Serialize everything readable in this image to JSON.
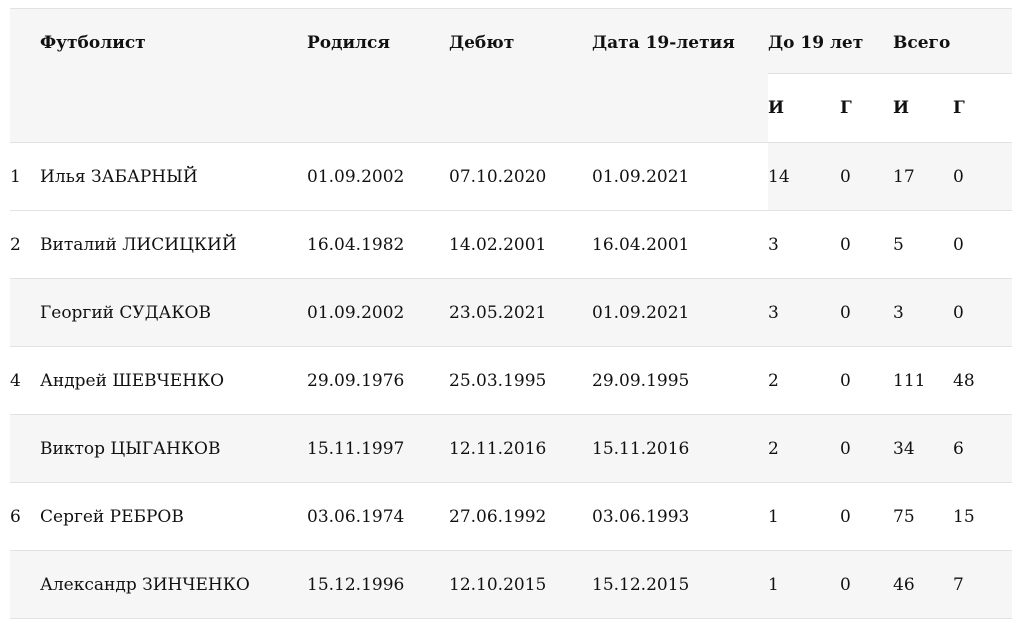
{
  "table": {
    "header": {
      "player": "Футболист",
      "born": "Родился",
      "debut": "Дебют",
      "date19": "Дата 19-летия",
      "under19": "До 19 лет",
      "total": "Всего",
      "matches_abbr": "И",
      "goals_abbr": "Г"
    },
    "rows": [
      {
        "num": "1",
        "player": "Илья ЗАБАРНЫЙ",
        "born": "01.09.2002",
        "debut": "07.10.2020",
        "date19": "01.09.2021",
        "u19_i": "14",
        "u19_g": "0",
        "tot_i": "17",
        "tot_g": "0",
        "shade": "numeric"
      },
      {
        "num": "2",
        "player": "Виталий ЛИСИЦКИЙ",
        "born": "16.04.1982",
        "debut": "14.02.2001",
        "date19": "16.04.2001",
        "u19_i": "3",
        "u19_g": "0",
        "tot_i": "5",
        "tot_g": "0",
        "shade": "none"
      },
      {
        "num": "",
        "player": "Георгий СУДАКОВ",
        "born": "01.09.2002",
        "debut": "23.05.2021",
        "date19": "01.09.2021",
        "u19_i": "3",
        "u19_g": "0",
        "tot_i": "3",
        "tot_g": "0",
        "shade": "full"
      },
      {
        "num": "4",
        "player": "Андрей ШЕВЧЕНКО",
        "born": "29.09.1976",
        "debut": "25.03.1995",
        "date19": "29.09.1995",
        "u19_i": "2",
        "u19_g": "0",
        "tot_i": "111",
        "tot_g": "48",
        "shade": "none"
      },
      {
        "num": "",
        "player": "Виктор ЦЫГАНКОВ",
        "born": "15.11.1997",
        "debut": "12.11.2016",
        "date19": "15.11.2016",
        "u19_i": "2",
        "u19_g": "0",
        "tot_i": "34",
        "tot_g": "6",
        "shade": "full"
      },
      {
        "num": "6",
        "player": "Сергей РЕБРОВ",
        "born": "03.06.1974",
        "debut": "27.06.1992",
        "date19": "03.06.1993",
        "u19_i": "1",
        "u19_g": "0",
        "tot_i": "75",
        "tot_g": "15",
        "shade": "none"
      },
      {
        "num": "",
        "player": "Александр ЗИНЧЕНКО",
        "born": "15.12.1996",
        "debut": "12.10.2015",
        "date19": "15.12.2015",
        "u19_i": "1",
        "u19_g": "0",
        "tot_i": "46",
        "tot_g": "7",
        "shade": "full"
      }
    ],
    "colors": {
      "header_bg": "#f6f6f6",
      "stripe_bg": "#f6f6f6",
      "border": "#e2e2e2",
      "text": "#111111"
    }
  }
}
